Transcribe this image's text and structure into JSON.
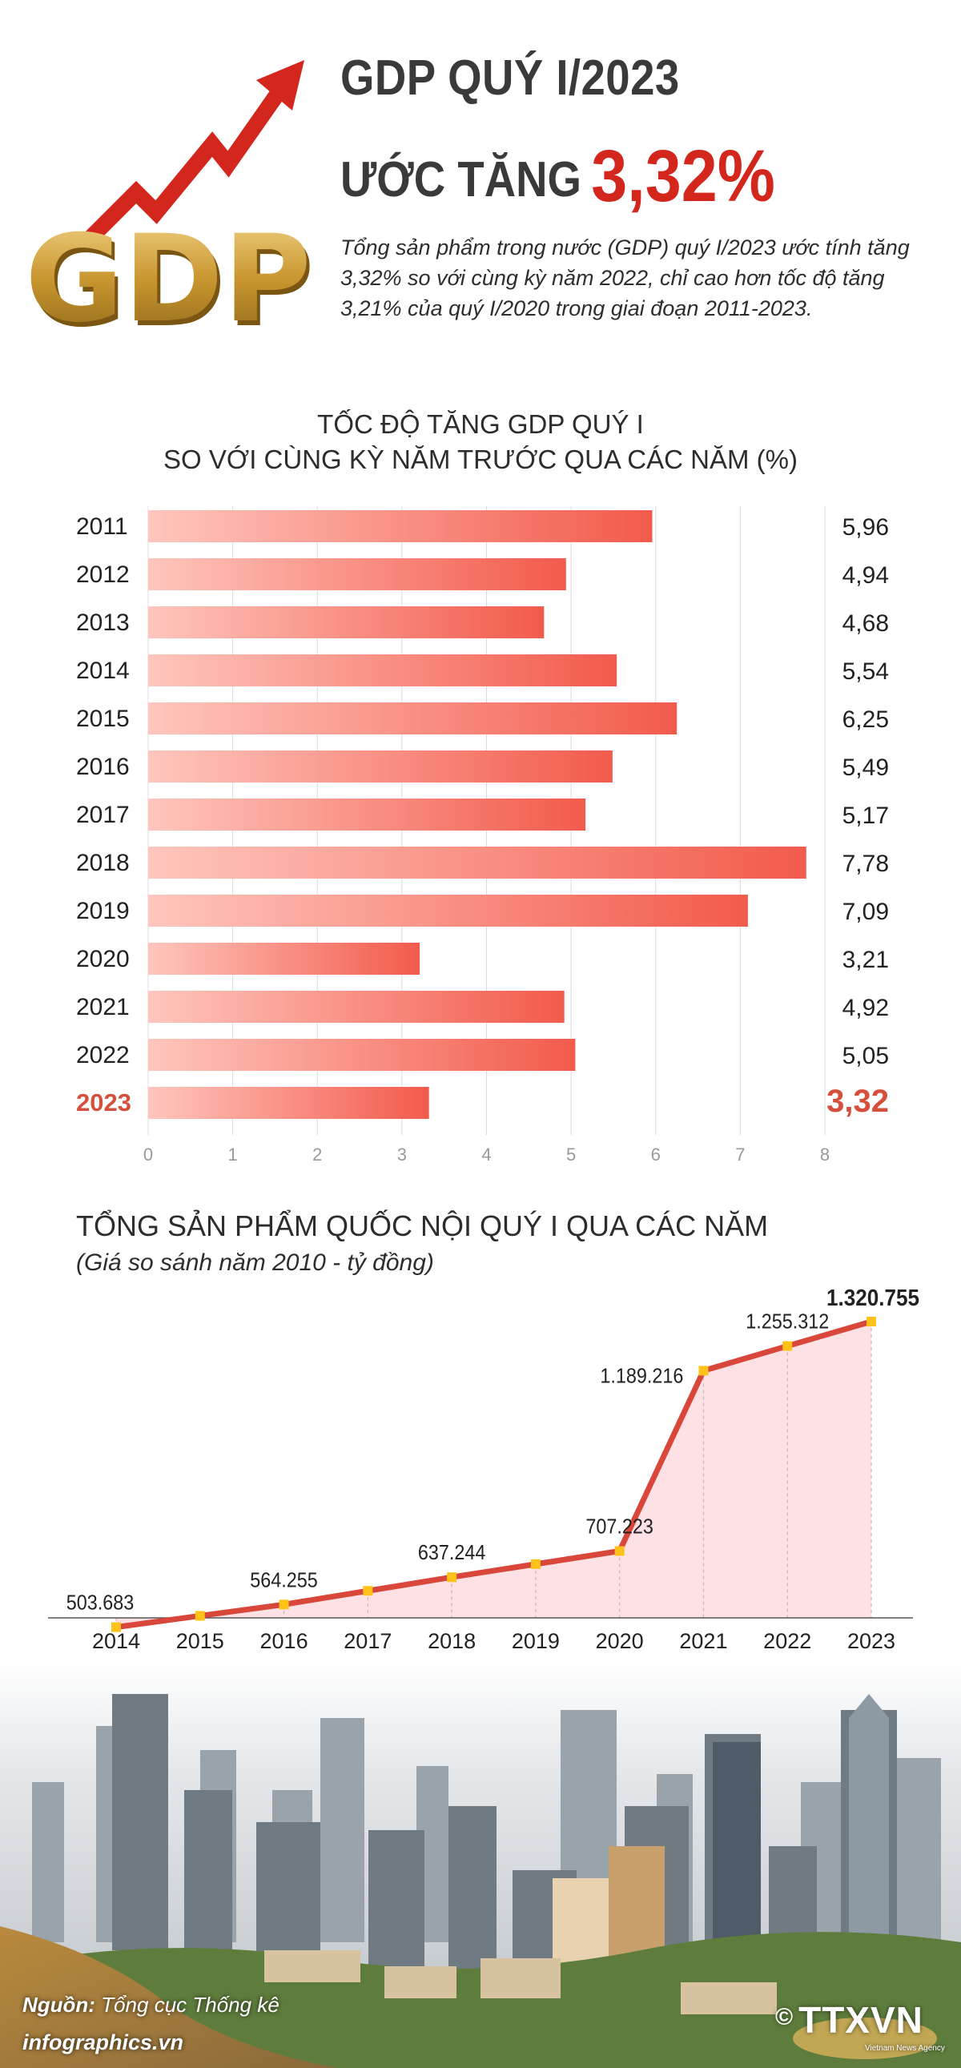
{
  "header": {
    "title_line1": "GDP QUÝ I/2023",
    "title_line2_prefix": "ƯỚC TĂNG",
    "title_line2_value": "3,32%",
    "logo_text": "GDP",
    "intro": "Tổng sản phẩm trong nước (GDP) quý I/2023 ước tính tăng 3,32% so với cùng kỳ năm 2022, chỉ cao hơn tốc độ tăng 3,21% của quý I/2020 trong giai đoạn 2011-2023."
  },
  "colors": {
    "accent": "#d3261d",
    "bar": "#f25b4c",
    "bar_highlight": "#ffc6bd",
    "highlight_text": "#d4503c",
    "line": "#d9473a",
    "line_fill": "#fde1e4",
    "point": "#ffc21a",
    "gold": "#c99a3b"
  },
  "chart_data": [
    {
      "type": "bar",
      "orientation": "horizontal",
      "title_line1": "TỐC ĐỘ TĂNG GDP QUÝ I",
      "title_line2": "SO VỚI CÙNG KỲ NĂM TRƯỚC QUA CÁC NĂM (%)",
      "categories": [
        "2011",
        "2012",
        "2013",
        "2014",
        "2015",
        "2016",
        "2017",
        "2018",
        "2019",
        "2020",
        "2021",
        "2022",
        "2023"
      ],
      "values": [
        5.96,
        4.94,
        4.68,
        5.54,
        6.25,
        5.49,
        5.17,
        7.78,
        7.09,
        3.21,
        4.92,
        5.05,
        3.32
      ],
      "value_labels": [
        "5,96",
        "4,94",
        "4,68",
        "5,54",
        "6,25",
        "5,49",
        "5,17",
        "7,78",
        "7,09",
        "3,21",
        "4,92",
        "5,05",
        "3,32"
      ],
      "highlight": "2023",
      "xlim": [
        0,
        8
      ],
      "xticks": [
        "0",
        "1",
        "2",
        "3",
        "4",
        "5",
        "6",
        "7",
        "8"
      ],
      "grid": true
    },
    {
      "type": "area",
      "title": "TỔNG SẢN PHẨM QUỐC NỘI QUÝ I QUA CÁC NĂM",
      "subtitle": "(Giá so sánh năm 2010 - tỷ đồng)",
      "x": [
        "2014",
        "2015",
        "2016",
        "2017",
        "2018",
        "2019",
        "2020",
        "2021",
        "2022",
        "2023"
      ],
      "values": [
        503683,
        null,
        564255,
        null,
        637244,
        null,
        707223,
        1189216,
        1255312,
        1320755
      ],
      "labels": [
        "503.683",
        "",
        "564.255",
        "",
        "637.244",
        "",
        "707.223",
        "1.189.216",
        "1.255.312",
        "1.320.755"
      ],
      "highlight": "2023"
    }
  ],
  "footer": {
    "source_label": "Nguồn:",
    "source_text": "Tổng cục Thống kê",
    "site": "infographics.vn",
    "agency": "TTXVN",
    "agency_sub": "Vietnam News Agency"
  }
}
